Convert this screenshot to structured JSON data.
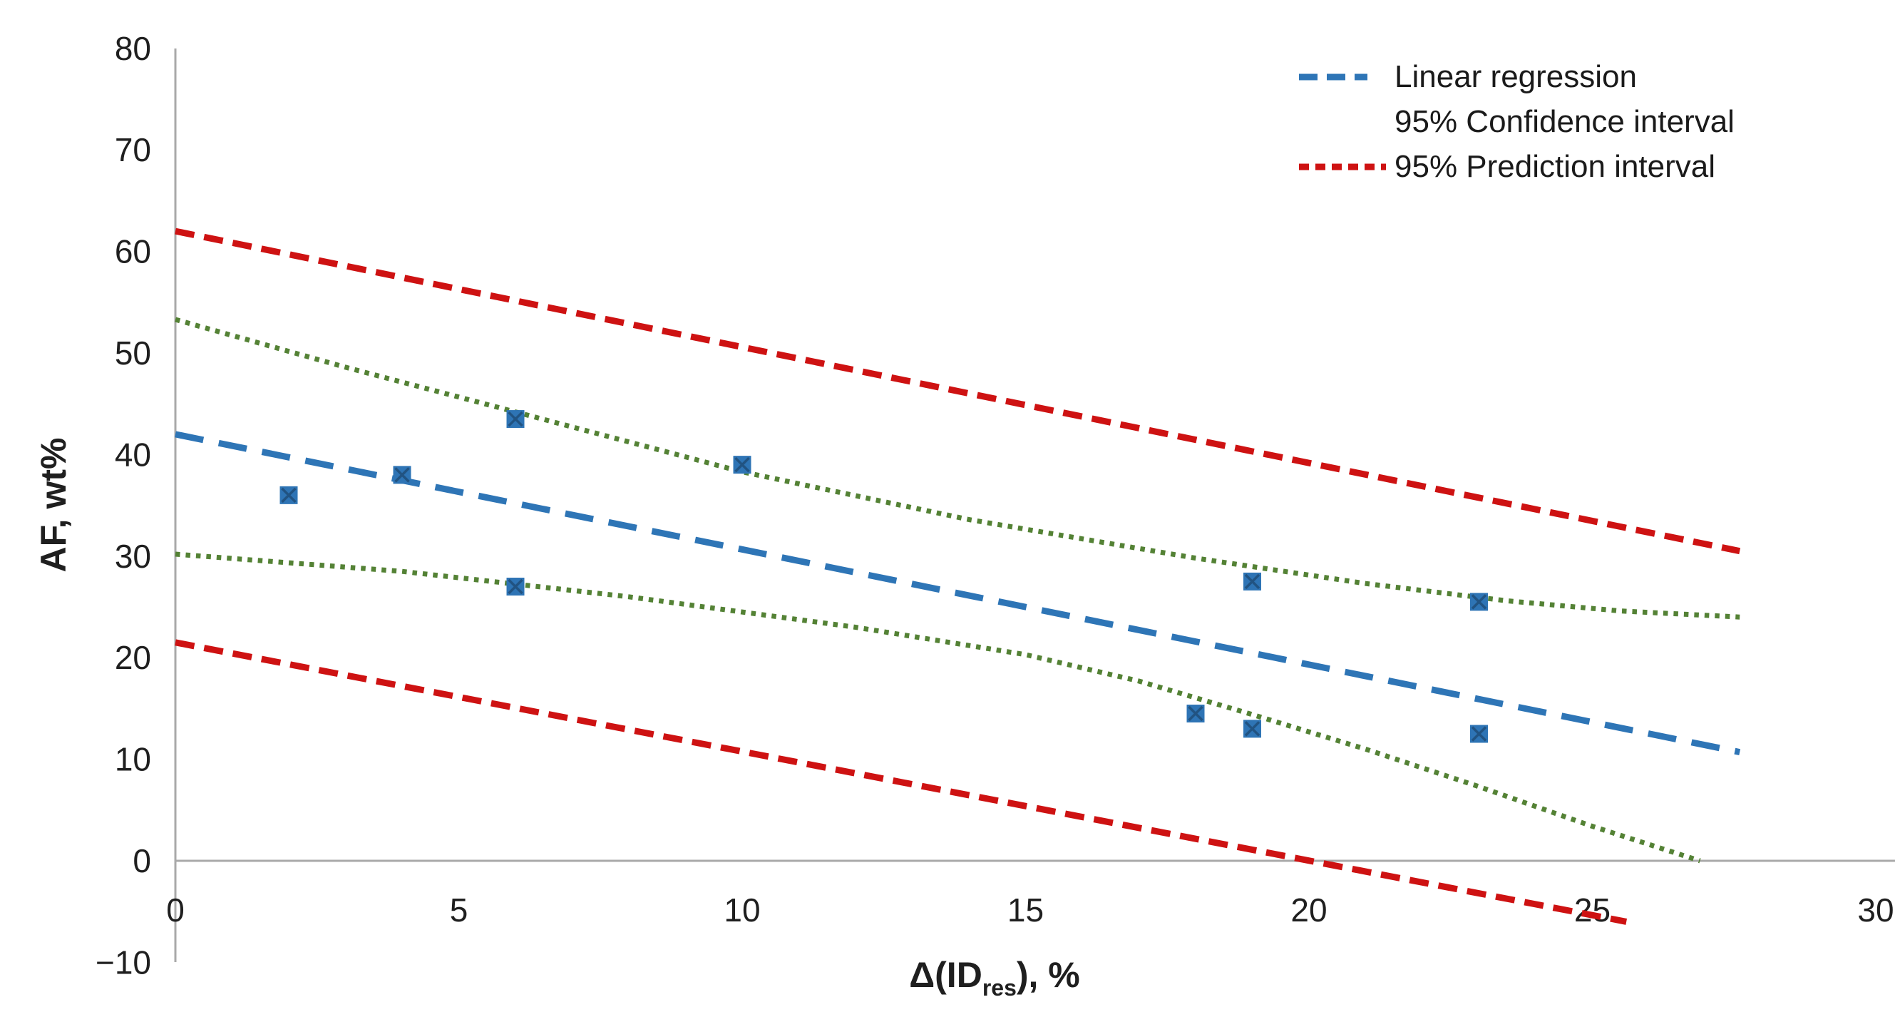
{
  "chart_data": {
    "type": "scatter",
    "title": "",
    "x_axis": {
      "label_prefix": "Δ(ID",
      "label_subscript": "res",
      "label_suffix": "), %",
      "min": 0,
      "max": 30,
      "tick_step": 5,
      "tick_labels": [
        "0",
        "5",
        "10",
        "15",
        "20",
        "25",
        "30"
      ],
      "tick_values": [
        0,
        5,
        10,
        15,
        20,
        25,
        30
      ]
    },
    "y_axis": {
      "label": "AF, wt%",
      "min": -10,
      "max": 80,
      "tick_step": 10,
      "tick_labels": [
        "80",
        "70",
        "60",
        "50",
        "40",
        "30",
        "20",
        "10",
        "0",
        "−10"
      ],
      "tick_values": [
        80,
        70,
        60,
        50,
        40,
        30,
        20,
        10,
        0,
        -10
      ]
    },
    "grid": false,
    "legend_position": "top-right",
    "legend": [
      {
        "label": "Linear regression",
        "marker": "dashed-line",
        "color": "#2E75B6"
      },
      {
        "label": "95% Confidence interval",
        "marker": "none",
        "color": "#548235"
      },
      {
        "label": "95% Prediction interval",
        "marker": "dashed-line",
        "color": "#CE1212"
      }
    ],
    "scatter_points": {
      "name": "Observations",
      "marker": "square-x",
      "color": "#2E74B5",
      "points": [
        [
          2,
          36
        ],
        [
          4,
          38
        ],
        [
          6,
          43.5
        ],
        [
          6,
          27
        ],
        [
          10,
          39
        ],
        [
          19,
          27.5
        ],
        [
          18,
          14.5
        ],
        [
          19,
          13
        ],
        [
          23,
          25.5
        ],
        [
          23,
          12.5
        ]
      ]
    },
    "lines": [
      {
        "name": "Linear regression",
        "style": "dashed-long",
        "color": "#2E75B6",
        "points": [
          [
            0,
            42
          ],
          [
            27.6,
            10.7
          ]
        ]
      },
      {
        "name": "95% Confidence interval upper",
        "style": "dotted",
        "color": "#548235",
        "points": [
          [
            0,
            53.3
          ],
          [
            3,
            48.6
          ],
          [
            6,
            44.2
          ],
          [
            10,
            38.3
          ],
          [
            14,
            33.6
          ],
          [
            18,
            29.8
          ],
          [
            21,
            27.3
          ],
          [
            23.5,
            25.6
          ],
          [
            25.5,
            24.6
          ],
          [
            27.6,
            24
          ]
        ]
      },
      {
        "name": "95% Confidence interval lower",
        "style": "dotted",
        "color": "#548235",
        "points": [
          [
            0,
            30.2
          ],
          [
            4,
            28.5
          ],
          [
            8,
            26
          ],
          [
            12,
            23
          ],
          [
            15,
            20.3
          ],
          [
            17,
            17.7
          ],
          [
            19,
            14.4
          ],
          [
            21,
            11
          ],
          [
            23,
            7.3
          ],
          [
            25,
            3.4
          ],
          [
            26.9,
            0
          ]
        ]
      },
      {
        "name": "95% Prediction interval upper",
        "style": "dashed",
        "color": "#CE1212",
        "points": [
          [
            0,
            62
          ],
          [
            27.6,
            30.5
          ]
        ]
      },
      {
        "name": "95% Prediction interval lower",
        "style": "dashed",
        "color": "#CE1212",
        "points": [
          [
            0,
            21.5
          ],
          [
            25.6,
            -6
          ]
        ]
      }
    ]
  },
  "colors": {
    "background": "#FFFFFF",
    "axis": "#A9A9A9",
    "text": "#1F1F1F",
    "regression": "#2E75B6",
    "confidence": "#548235",
    "prediction": "#CE1212",
    "marker_fill": "#2E74B5",
    "marker_cross": "#1F4E79"
  }
}
